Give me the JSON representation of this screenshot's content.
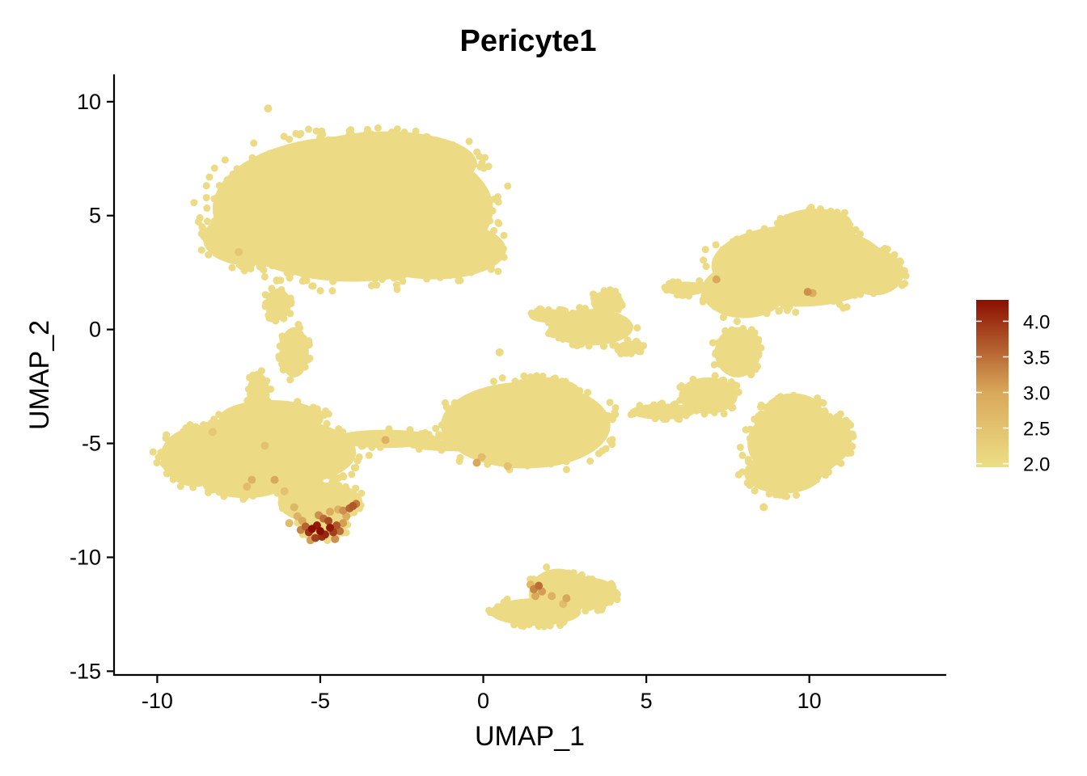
{
  "chart_data": {
    "type": "scatter",
    "title": "Pericyte1",
    "xlabel": "UMAP_1",
    "ylabel": "UMAP_2",
    "xlim": [
      -11.3,
      14.2
    ],
    "ylim": [
      -15.2,
      11.2
    ],
    "x_ticks": [
      -10,
      -5,
      0,
      5,
      10
    ],
    "y_ticks": [
      -15,
      -10,
      -5,
      0,
      5,
      10
    ],
    "grid": false,
    "legend": {
      "position": "right",
      "type": "colorbar",
      "ticks": [
        2.0,
        2.5,
        3.0,
        3.5,
        4.0
      ],
      "tick_labels": [
        "2.0",
        "2.5",
        "3.0",
        "3.5",
        "4.0"
      ],
      "min": 1.95,
      "max": 4.3
    },
    "color_low": "#EDDE86",
    "color_mid": "#D9A85A",
    "color_high": "#8B0F00",
    "base_value": 2.0,
    "clusters": [
      {
        "cx": -4.0,
        "cy": 5.3,
        "rx": 4.3,
        "ry": 3.2
      },
      {
        "cx": -3.0,
        "cy": 7.3,
        "rx": 2.8,
        "ry": 1.4
      },
      {
        "cx": -7.2,
        "cy": 4.0,
        "rx": 1.4,
        "ry": 1.2
      },
      {
        "cx": -1.5,
        "cy": 3.5,
        "rx": 2.2,
        "ry": 1.3
      },
      {
        "cx": -6.8,
        "cy": -5.4,
        "rx": 2.9,
        "ry": 1.6
      },
      {
        "cx": -8.8,
        "cy": -5.6,
        "rx": 1.1,
        "ry": 1.3
      },
      {
        "cx": -6.5,
        "cy": -3.9,
        "rx": 1.6,
        "ry": 0.8
      },
      {
        "cx": -5.0,
        "cy": -7.6,
        "rx": 1.3,
        "ry": 0.9
      },
      {
        "cx": -4.9,
        "cy": -8.7,
        "rx": 0.7,
        "ry": 0.5
      },
      {
        "cx": -7.3,
        "cy": -6.8,
        "rx": 1.2,
        "ry": 0.6
      },
      {
        "cx": -5.8,
        "cy": -1.0,
        "rx": 0.45,
        "ry": 1.1
      },
      {
        "cx": -6.3,
        "cy": 1.1,
        "rx": 0.4,
        "ry": 0.7
      },
      {
        "cx": -6.9,
        "cy": -2.8,
        "rx": 0.35,
        "ry": 0.9
      },
      {
        "cx": -3.0,
        "cy": -4.8,
        "rx": 1.6,
        "ry": 0.4
      },
      {
        "cx": -0.7,
        "cy": -5.1,
        "rx": 1.6,
        "ry": 0.25
      },
      {
        "cx": 0.1,
        "cy": -4.0,
        "rx": 1.0,
        "ry": 0.8
      },
      {
        "cx": 1.3,
        "cy": -4.2,
        "rx": 2.6,
        "ry": 1.9
      },
      {
        "cx": 1.8,
        "cy": -2.6,
        "rx": 1.1,
        "ry": 0.5
      },
      {
        "cx": 2.3,
        "cy": -11.6,
        "rx": 0.9,
        "ry": 1.1
      },
      {
        "cx": 1.6,
        "cy": -12.4,
        "rx": 1.4,
        "ry": 0.6
      },
      {
        "cx": 3.3,
        "cy": -11.6,
        "rx": 0.8,
        "ry": 0.7
      },
      {
        "cx": 3.3,
        "cy": 0.1,
        "rx": 1.3,
        "ry": 0.8
      },
      {
        "cx": 3.8,
        "cy": 1.2,
        "rx": 0.5,
        "ry": 0.5
      },
      {
        "cx": 2.0,
        "cy": 0.6,
        "rx": 0.6,
        "ry": 0.3
      },
      {
        "cx": 4.5,
        "cy": -0.8,
        "rx": 0.4,
        "ry": 0.3
      },
      {
        "cx": 9.7,
        "cy": 2.8,
        "rx": 2.7,
        "ry": 1.8
      },
      {
        "cx": 8.0,
        "cy": 1.7,
        "rx": 1.3,
        "ry": 1.2
      },
      {
        "cx": 12.0,
        "cy": 2.5,
        "rx": 0.9,
        "ry": 1.0
      },
      {
        "cx": 10.2,
        "cy": 4.7,
        "rx": 1.1,
        "ry": 0.6
      },
      {
        "cx": 6.2,
        "cy": 1.8,
        "rx": 0.7,
        "ry": 0.3
      },
      {
        "cx": 7.8,
        "cy": -1.0,
        "rx": 0.7,
        "ry": 1.1
      },
      {
        "cx": 6.9,
        "cy": -2.9,
        "rx": 0.9,
        "ry": 0.8
      },
      {
        "cx": 5.5,
        "cy": -3.6,
        "rx": 1.0,
        "ry": 0.35
      },
      {
        "cx": 9.6,
        "cy": -5.0,
        "rx": 1.5,
        "ry": 1.6
      },
      {
        "cx": 9.2,
        "cy": -6.3,
        "rx": 1.2,
        "ry": 0.9
      },
      {
        "cx": 9.5,
        "cy": -3.6,
        "rx": 0.9,
        "ry": 0.8
      },
      {
        "cx": 10.8,
        "cy": -4.8,
        "rx": 0.5,
        "ry": 1.0
      }
    ],
    "hot_points": [
      {
        "x": -5.25,
        "y": -8.75,
        "v": 4.3
      },
      {
        "x": -5.1,
        "y": -8.6,
        "v": 4.2
      },
      {
        "x": -5.0,
        "y": -8.85,
        "v": 4.3
      },
      {
        "x": -4.85,
        "y": -9.0,
        "v": 4.1
      },
      {
        "x": -4.7,
        "y": -8.7,
        "v": 4.2
      },
      {
        "x": -4.95,
        "y": -9.1,
        "v": 4.0
      },
      {
        "x": -5.35,
        "y": -8.9,
        "v": 4.0
      },
      {
        "x": -4.6,
        "y": -8.9,
        "v": 3.9
      },
      {
        "x": -4.75,
        "y": -8.4,
        "v": 3.8
      },
      {
        "x": -5.15,
        "y": -9.15,
        "v": 3.9
      },
      {
        "x": -4.5,
        "y": -8.6,
        "v": 3.7
      },
      {
        "x": -5.45,
        "y": -8.65,
        "v": 3.6
      },
      {
        "x": -4.9,
        "y": -8.3,
        "v": 3.5
      },
      {
        "x": -4.4,
        "y": -8.85,
        "v": 3.5
      },
      {
        "x": -5.6,
        "y": -8.8,
        "v": 3.3
      },
      {
        "x": -5.05,
        "y": -8.15,
        "v": 3.2
      },
      {
        "x": -4.3,
        "y": -8.5,
        "v": 3.1
      },
      {
        "x": -5.55,
        "y": -8.4,
        "v": 3.0
      },
      {
        "x": -4.55,
        "y": -9.2,
        "v": 3.2
      },
      {
        "x": -5.3,
        "y": -9.25,
        "v": 3.1
      },
      {
        "x": -4.2,
        "y": -8.2,
        "v": 2.9
      },
      {
        "x": -5.7,
        "y": -8.2,
        "v": 2.8
      },
      {
        "x": -4.7,
        "y": -8.0,
        "v": 2.9
      },
      {
        "x": -5.8,
        "y": -7.8,
        "v": 2.7
      },
      {
        "x": -4.45,
        "y": -7.9,
        "v": 2.8
      },
      {
        "x": -5.95,
        "y": -8.5,
        "v": 2.6
      },
      {
        "x": -4.0,
        "y": -7.75,
        "v": 3.7
      },
      {
        "x": -4.1,
        "y": -7.85,
        "v": 3.6
      },
      {
        "x": -3.9,
        "y": -7.65,
        "v": 3.4
      },
      {
        "x": -4.3,
        "y": -7.95,
        "v": 3.2
      },
      {
        "x": -6.4,
        "y": -6.6,
        "v": 3.0
      },
      {
        "x": -7.1,
        "y": -6.6,
        "v": 2.8
      },
      {
        "x": -7.25,
        "y": -6.9,
        "v": 2.6
      },
      {
        "x": -6.7,
        "y": -5.1,
        "v": 2.5
      },
      {
        "x": -6.1,
        "y": -7.1,
        "v": 2.5
      },
      {
        "x": -3.0,
        "y": -4.85,
        "v": 2.8
      },
      {
        "x": 1.7,
        "y": -11.25,
        "v": 3.5
      },
      {
        "x": 1.55,
        "y": -11.4,
        "v": 3.3
      },
      {
        "x": 1.8,
        "y": -11.5,
        "v": 3.1
      },
      {
        "x": 1.6,
        "y": -11.7,
        "v": 3.0
      },
      {
        "x": 2.1,
        "y": -11.7,
        "v": 2.8
      },
      {
        "x": 2.55,
        "y": -11.8,
        "v": 3.0
      },
      {
        "x": 2.45,
        "y": -12.05,
        "v": 2.6
      },
      {
        "x": 1.45,
        "y": -11.2,
        "v": 2.7
      },
      {
        "x": -0.2,
        "y": -5.85,
        "v": 3.0
      },
      {
        "x": -0.05,
        "y": -5.6,
        "v": 2.6
      },
      {
        "x": 0.75,
        "y": -6.0,
        "v": 2.5
      },
      {
        "x": 7.15,
        "y": 2.2,
        "v": 3.0
      },
      {
        "x": 9.95,
        "y": 1.65,
        "v": 3.2
      },
      {
        "x": 10.1,
        "y": 1.6,
        "v": 2.9
      },
      {
        "x": -7.5,
        "y": 3.4,
        "v": 2.4
      },
      {
        "x": -8.3,
        "y": -4.5,
        "v": 2.4
      }
    ]
  }
}
